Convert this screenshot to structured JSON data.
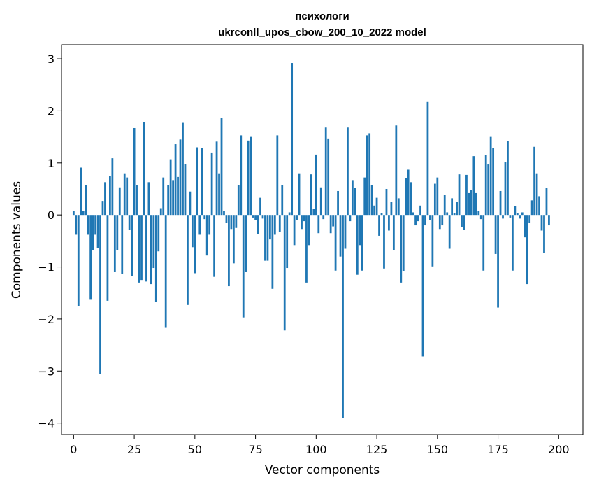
{
  "chart_data": {
    "type": "bar",
    "title": "психологи",
    "subtitle": "ukrconll_upos_cbow_200_10_2022 model",
    "xlabel": "Vector components",
    "ylabel": "Components values",
    "xlim": [
      -5,
      210
    ],
    "ylim": [
      -4.22,
      3.27
    ],
    "grid": false,
    "bar_color": "#1f77b4",
    "xticks": [
      0,
      25,
      50,
      75,
      100,
      125,
      150,
      175,
      200
    ],
    "xtick_labels": [
      "0",
      "25",
      "50",
      "75",
      "100",
      "125",
      "150",
      "175",
      "200"
    ],
    "yticks": [
      3,
      2,
      1,
      0,
      -1,
      -2,
      -3,
      -4
    ],
    "ytick_labels": [
      "3",
      "2",
      "1",
      "0",
      "−1",
      "−2",
      "−3",
      "−4"
    ],
    "values": [
      0.08,
      -0.38,
      -1.75,
      0.91,
      0.08,
      0.57,
      -0.38,
      -1.63,
      -0.68,
      -0.38,
      -0.63,
      -3.05,
      0.27,
      0.63,
      -1.65,
      0.75,
      1.09,
      -1.1,
      -0.67,
      0.53,
      -1.13,
      0.8,
      0.72,
      -0.28,
      -1.17,
      1.67,
      0.58,
      -1.3,
      -1.25,
      1.78,
      -1.28,
      0.63,
      -1.33,
      -1.02,
      -1.67,
      -0.7,
      0.13,
      0.72,
      -2.17,
      0.57,
      1.07,
      0.67,
      1.36,
      0.73,
      1.45,
      1.77,
      0.98,
      -1.73,
      0.45,
      -0.62,
      -1.12,
      1.3,
      -0.38,
      1.29,
      -0.08,
      -0.78,
      -0.38,
      1.2,
      -1.19,
      1.41,
      0.8,
      1.86,
      0.07,
      -0.15,
      -1.37,
      -0.27,
      -0.93,
      -0.25,
      0.57,
      1.53,
      -1.97,
      -1.1,
      1.43,
      1.5,
      -0.05,
      -0.1,
      -0.37,
      0.33,
      -0.07,
      -0.88,
      -0.88,
      -0.47,
      -1.42,
      -0.38,
      1.53,
      -0.32,
      0.57,
      -2.22,
      -1.02,
      0.05,
      2.92,
      -0.58,
      -0.1,
      0.8,
      -0.27,
      -0.12,
      -1.3,
      -0.58,
      0.78,
      0.12,
      1.16,
      -0.35,
      0.53,
      -0.08,
      1.68,
      1.47,
      -0.35,
      -0.22,
      -1.07,
      0.46,
      -0.8,
      -3.9,
      -0.65,
      1.68,
      -0.12,
      0.67,
      0.52,
      -1.15,
      -0.58,
      -1.07,
      0.72,
      1.53,
      1.57,
      0.57,
      0.18,
      0.33,
      -0.4,
      0.03,
      -1.03,
      0.5,
      -0.3,
      0.25,
      -0.67,
      1.72,
      0.32,
      -1.3,
      -1.08,
      0.71,
      0.87,
      0.63,
      0.05,
      -0.2,
      -0.12,
      0.18,
      -2.72,
      -0.2,
      2.17,
      -0.1,
      -0.99,
      0.6,
      0.72,
      -0.27,
      -0.2,
      0.38,
      0.05,
      -0.65,
      0.32,
      0.03,
      0.25,
      0.78,
      -0.23,
      -0.28,
      0.77,
      0.42,
      0.48,
      1.13,
      0.42,
      0.07,
      -0.08,
      -1.07,
      1.15,
      0.97,
      1.5,
      1.28,
      -0.75,
      -1.78,
      0.46,
      -0.07,
      1.02,
      1.42,
      -0.05,
      -1.07,
      0.17,
      0.03,
      -0.07,
      0.05,
      -0.43,
      -1.33,
      -0.15,
      0.28,
      1.31,
      0.8,
      0.36,
      -0.3,
      -0.73,
      0.52,
      -0.2
    ]
  }
}
